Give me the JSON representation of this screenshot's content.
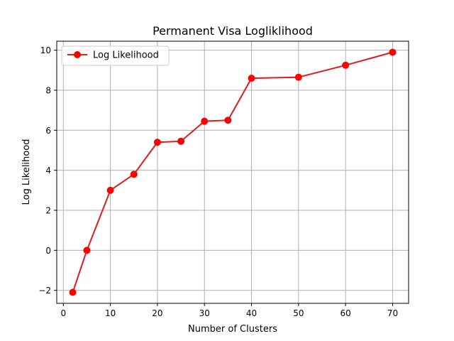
{
  "chart_data": {
    "type": "line",
    "title": "Permanent Visa Logliklihood",
    "xlabel": "Number of Clusters",
    "ylabel": "Log Likelihood",
    "xlim": [
      -1.4,
      73.4
    ],
    "ylim": [
      -2.65,
      10.45
    ],
    "xticks": [
      0,
      10,
      20,
      30,
      40,
      50,
      60,
      70
    ],
    "xtick_labels": [
      "0",
      "10",
      "20",
      "30",
      "40",
      "50",
      "60",
      "70"
    ],
    "yticks": [
      -2,
      0,
      2,
      4,
      6,
      8,
      10
    ],
    "ytick_labels": [
      "−2",
      "0",
      "2",
      "4",
      "6",
      "8",
      "10"
    ],
    "grid": true,
    "legend_position": "top-left",
    "x": [
      2,
      5,
      10,
      15,
      20,
      25,
      30,
      35,
      40,
      50,
      60,
      70
    ],
    "series": [
      {
        "name": "Log Likelihood",
        "color": "#ff0000",
        "line_color": "#e31a1c",
        "marker": "circle",
        "values": [
          -2.1,
          0.0,
          3.0,
          3.8,
          5.4,
          5.45,
          6.45,
          6.5,
          8.6,
          8.65,
          9.25,
          9.9
        ]
      }
    ]
  }
}
